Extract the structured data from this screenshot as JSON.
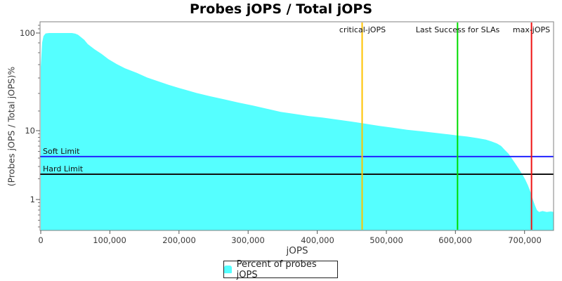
{
  "title": "Probes jOPS / Total jOPS",
  "axes": {
    "x_label": "jOPS",
    "y_label": "(Probes jOPS / Total jOPS)%",
    "x_ticks": [
      "0",
      "100,000",
      "200,000",
      "300,000",
      "400,000",
      "500,000",
      "600,000",
      "700,000"
    ],
    "y_ticks": [
      "100",
      "10",
      "1"
    ]
  },
  "legend": {
    "label": "Percent of probes jOPS",
    "swatch_color": "#55ffff"
  },
  "colors": {
    "series_fill": "#55ffff",
    "critical_jops_line": "#ffc300",
    "last_success_line": "#00dd00",
    "max_jops_line": "#ee1111",
    "soft_limit_line": "#2222ff",
    "hard_limit_line": "#111111",
    "plot_border": "#808080"
  },
  "chart_data": {
    "type": "area",
    "title": "Probes jOPS / Total jOPS",
    "xlabel": "jOPS",
    "ylabel": "(Probes jOPS / Total jOPS)%",
    "x_scale": "linear",
    "y_scale": "log",
    "xlim": [
      0,
      742000
    ],
    "ylim": [
      0.35,
      130
    ],
    "grid": false,
    "legend_position": "bottom",
    "series": [
      {
        "name": "Percent of probes jOPS",
        "color": "#55ffff",
        "points": [
          [
            0,
            45
          ],
          [
            2000,
            80
          ],
          [
            4000,
            93
          ],
          [
            7000,
            99
          ],
          [
            12000,
            100
          ],
          [
            30000,
            100
          ],
          [
            45000,
            100
          ],
          [
            50000,
            98.5
          ],
          [
            54000,
            96
          ],
          [
            58000,
            91
          ],
          [
            63000,
            85
          ],
          [
            68000,
            77
          ],
          [
            78000,
            68
          ],
          [
            88000,
            61
          ],
          [
            98000,
            54
          ],
          [
            110000,
            48
          ],
          [
            122000,
            43.5
          ],
          [
            139000,
            39
          ],
          [
            154000,
            35
          ],
          [
            170000,
            32
          ],
          [
            185000,
            29.5
          ],
          [
            200000,
            27.4
          ],
          [
            225000,
            24.4
          ],
          [
            245000,
            22.5
          ],
          [
            266000,
            20.9
          ],
          [
            286000,
            19.4
          ],
          [
            307000,
            18.1
          ],
          [
            327000,
            16.8
          ],
          [
            347000,
            15.6
          ],
          [
            368000,
            14.8
          ],
          [
            388000,
            14.1
          ],
          [
            408000,
            13.6
          ],
          [
            429000,
            13.0
          ],
          [
            449000,
            12.4
          ],
          [
            469000,
            11.8
          ],
          [
            490000,
            11.2
          ],
          [
            510000,
            10.7
          ],
          [
            530000,
            10.2
          ],
          [
            551000,
            9.8
          ],
          [
            571000,
            9.3
          ],
          [
            591000,
            8.8
          ],
          [
            603000,
            8.5
          ],
          [
            617000,
            8.2
          ],
          [
            632000,
            7.8
          ],
          [
            644000,
            7.4
          ],
          [
            652000,
            7.0
          ],
          [
            660000,
            6.5
          ],
          [
            666000,
            6.0
          ],
          [
            671000,
            5.3
          ],
          [
            677000,
            4.6
          ],
          [
            682000,
            3.9
          ],
          [
            687000,
            3.3
          ],
          [
            692000,
            2.75
          ],
          [
            697000,
            2.3
          ],
          [
            701000,
            1.95
          ],
          [
            705000,
            1.6
          ],
          [
            709000,
            1.25
          ],
          [
            712000,
            1.0
          ],
          [
            715000,
            0.82
          ],
          [
            718000,
            0.7
          ],
          [
            721000,
            0.66
          ],
          [
            726000,
            0.68
          ],
          [
            732000,
            0.66
          ],
          [
            738000,
            0.67
          ],
          [
            742000,
            0.66
          ]
        ]
      }
    ],
    "vlines": [
      {
        "label": "critical-jOPS",
        "x": 465000,
        "color": "#ffc300"
      },
      {
        "label": "Last Success for SLAs",
        "x": 603000,
        "color": "#00dd00"
      },
      {
        "label": "max-jOPS",
        "x": 710000,
        "color": "#ee1111"
      }
    ],
    "hlines": [
      {
        "label": "Soft Limit",
        "y": 4.2,
        "color": "#2222ff"
      },
      {
        "label": "Hard Limit",
        "y": 2.33,
        "color": "#111111"
      }
    ]
  }
}
